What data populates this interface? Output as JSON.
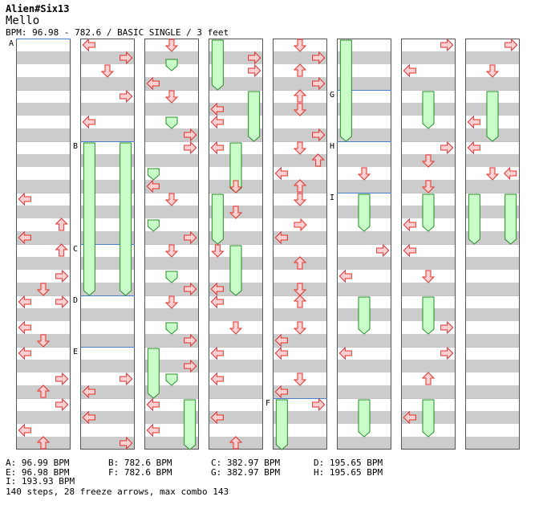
{
  "header": {
    "artist": "Alien#Six13",
    "title": "Mello",
    "meta": "BPM: 96.98 - 782.6 / BASIC SINGLE / 3 feet"
  },
  "colors": {
    "stripe": "#cccccc",
    "bpm_line": "#4a7fd0",
    "arrow_fill": "#ffd0d0",
    "arrow_stroke": "#e03030",
    "freeze_fill": "#c8ffc8",
    "freeze_stroke": "#2a8a2a"
  },
  "chart": {
    "lanes_per_column": 3,
    "measures_per_column": 8,
    "rows_per_measure": 16,
    "bpm_markers": [
      {
        "label": "A",
        "col": 0,
        "measure": 0,
        "row": 0
      },
      {
        "label": "B",
        "col": 1,
        "measure": 2,
        "row": 0
      },
      {
        "label": "C",
        "col": 1,
        "measure": 4,
        "row": 0
      },
      {
        "label": "D",
        "col": 1,
        "measure": 5,
        "row": 0
      },
      {
        "label": "E",
        "col": 1,
        "measure": 6,
        "row": 0
      },
      {
        "label": "F",
        "col": 4,
        "measure": 7,
        "row": 0
      },
      {
        "label": "G",
        "col": 5,
        "measure": 1,
        "row": 0
      },
      {
        "label": "H",
        "col": 5,
        "measure": 2,
        "row": 0
      },
      {
        "label": "I",
        "col": 5,
        "measure": 3,
        "row": 0
      }
    ],
    "freezes": [
      {
        "col": 1,
        "lane": 0,
        "from": [
          2,
          0
        ],
        "to": [
          5,
          0
        ]
      },
      {
        "col": 1,
        "lane": 2,
        "from": [
          2,
          0
        ],
        "to": [
          5,
          0
        ]
      },
      {
        "col": 2,
        "lane": 1,
        "from": [
          0,
          6
        ],
        "to": [
          0,
          10
        ]
      },
      {
        "col": 2,
        "lane": 1,
        "from": [
          1,
          8
        ],
        "to": [
          1,
          12
        ]
      },
      {
        "col": 2,
        "lane": 0,
        "from": [
          2,
          8
        ],
        "to": [
          2,
          12
        ]
      },
      {
        "col": 2,
        "lane": 0,
        "from": [
          3,
          8
        ],
        "to": [
          3,
          12
        ]
      },
      {
        "col": 2,
        "lane": 1,
        "from": [
          4,
          8
        ],
        "to": [
          4,
          12
        ]
      },
      {
        "col": 2,
        "lane": 1,
        "from": [
          5,
          8
        ],
        "to": [
          5,
          12
        ]
      },
      {
        "col": 2,
        "lane": 1,
        "from": [
          6,
          8
        ],
        "to": [
          6,
          12
        ]
      },
      {
        "col": 2,
        "lane": 0,
        "from": [
          6,
          0
        ],
        "to": [
          6,
          16
        ]
      },
      {
        "col": 2,
        "lane": 2,
        "from": [
          7,
          0
        ],
        "to": [
          7,
          16
        ]
      },
      {
        "col": 3,
        "lane": 0,
        "from": [
          0,
          0
        ],
        "to": [
          0,
          16
        ]
      },
      {
        "col": 3,
        "lane": 2,
        "from": [
          1,
          0
        ],
        "to": [
          1,
          16
        ]
      },
      {
        "col": 3,
        "lane": 1,
        "from": [
          2,
          0
        ],
        "to": [
          2,
          16
        ]
      },
      {
        "col": 3,
        "lane": 0,
        "from": [
          3,
          0
        ],
        "to": [
          3,
          16
        ]
      },
      {
        "col": 3,
        "lane": 1,
        "from": [
          4,
          0
        ],
        "to": [
          4,
          16
        ]
      },
      {
        "col": 4,
        "lane": 0,
        "from": [
          7,
          0
        ],
        "to": [
          7,
          20
        ]
      },
      {
        "col": 5,
        "lane": 0,
        "from": [
          0,
          0
        ],
        "to": [
          2,
          0
        ]
      },
      {
        "col": 5,
        "lane": 1,
        "from": [
          3,
          0
        ],
        "to": [
          3,
          12
        ]
      },
      {
        "col": 5,
        "lane": 1,
        "from": [
          5,
          0
        ],
        "to": [
          5,
          12
        ]
      },
      {
        "col": 5,
        "lane": 1,
        "from": [
          7,
          0
        ],
        "to": [
          7,
          12
        ]
      },
      {
        "col": 6,
        "lane": 1,
        "from": [
          1,
          0
        ],
        "to": [
          1,
          12
        ]
      },
      {
        "col": 6,
        "lane": 1,
        "from": [
          3,
          0
        ],
        "to": [
          3,
          12
        ]
      },
      {
        "col": 6,
        "lane": 1,
        "from": [
          5,
          0
        ],
        "to": [
          5,
          12
        ]
      },
      {
        "col": 6,
        "lane": 1,
        "from": [
          7,
          0
        ],
        "to": [
          7,
          12
        ]
      },
      {
        "col": 7,
        "lane": 1,
        "from": [
          1,
          0
        ],
        "to": [
          1,
          16
        ]
      },
      {
        "col": 7,
        "lane": 0,
        "from": [
          3,
          0
        ],
        "to": [
          3,
          16
        ]
      },
      {
        "col": 7,
        "lane": 2,
        "from": [
          3,
          0
        ],
        "to": [
          3,
          16
        ]
      }
    ],
    "arrows": [
      {
        "col": 0,
        "measure": 3,
        "row": 0,
        "lane": 0,
        "dir": "left"
      },
      {
        "col": 0,
        "measure": 3,
        "row": 8,
        "lane": 2,
        "dir": "up"
      },
      {
        "col": 0,
        "measure": 3,
        "row": 12,
        "lane": 0,
        "dir": "left"
      },
      {
        "col": 0,
        "measure": 4,
        "row": 0,
        "lane": 2,
        "dir": "up"
      },
      {
        "col": 0,
        "measure": 4,
        "row": 8,
        "lane": 2,
        "dir": "right"
      },
      {
        "col": 0,
        "measure": 4,
        "row": 12,
        "lane": 1,
        "dir": "down"
      },
      {
        "col": 0,
        "measure": 5,
        "row": 0,
        "lane": 0,
        "dir": "left"
      },
      {
        "col": 0,
        "measure": 5,
        "row": 0,
        "lane": 2,
        "dir": "right"
      },
      {
        "col": 0,
        "measure": 5,
        "row": 8,
        "lane": 0,
        "dir": "left"
      },
      {
        "col": 0,
        "measure": 5,
        "row": 12,
        "lane": 1,
        "dir": "down"
      },
      {
        "col": 0,
        "measure": 6,
        "row": 0,
        "lane": 0,
        "dir": "left"
      },
      {
        "col": 0,
        "measure": 6,
        "row": 8,
        "lane": 2,
        "dir": "right"
      },
      {
        "col": 0,
        "measure": 6,
        "row": 12,
        "lane": 1,
        "dir": "up"
      },
      {
        "col": 0,
        "measure": 7,
        "row": 8,
        "lane": 0,
        "dir": "left"
      },
      {
        "col": 0,
        "measure": 7,
        "row": 12,
        "lane": 1,
        "dir": "up"
      },
      {
        "col": 0,
        "measure": 7,
        "row": 0,
        "lane": 2,
        "dir": "right"
      },
      {
        "col": 1,
        "measure": 0,
        "row": 0,
        "lane": 0,
        "dir": "left"
      },
      {
        "col": 1,
        "measure": 0,
        "row": 8,
        "lane": 1,
        "dir": "down"
      },
      {
        "col": 1,
        "measure": 0,
        "row": 4,
        "lane": 2,
        "dir": "right"
      },
      {
        "col": 1,
        "measure": 1,
        "row": 0,
        "lane": 2,
        "dir": "right"
      },
      {
        "col": 1,
        "measure": 1,
        "row": 8,
        "lane": 0,
        "dir": "left"
      },
      {
        "col": 1,
        "measure": 6,
        "row": 12,
        "lane": 0,
        "dir": "left"
      },
      {
        "col": 1,
        "measure": 6,
        "row": 8,
        "lane": 2,
        "dir": "right"
      },
      {
        "col": 1,
        "measure": 7,
        "row": 12,
        "lane": 2,
        "dir": "right"
      },
      {
        "col": 1,
        "measure": 7,
        "row": 4,
        "lane": 0,
        "dir": "left"
      },
      {
        "col": 2,
        "measure": 0,
        "row": 0,
        "lane": 1,
        "dir": "down"
      },
      {
        "col": 2,
        "measure": 0,
        "row": 12,
        "lane": 0,
        "dir": "left"
      },
      {
        "col": 2,
        "measure": 1,
        "row": 0,
        "lane": 1,
        "dir": "down"
      },
      {
        "col": 2,
        "measure": 1,
        "row": 12,
        "lane": 2,
        "dir": "right"
      },
      {
        "col": 2,
        "measure": 2,
        "row": 0,
        "lane": 2,
        "dir": "right"
      },
      {
        "col": 2,
        "measure": 2,
        "row": 12,
        "lane": 0,
        "dir": "left"
      },
      {
        "col": 2,
        "measure": 3,
        "row": 0,
        "lane": 1,
        "dir": "down"
      },
      {
        "col": 2,
        "measure": 3,
        "row": 12,
        "lane": 2,
        "dir": "right"
      },
      {
        "col": 2,
        "measure": 4,
        "row": 0,
        "lane": 1,
        "dir": "down"
      },
      {
        "col": 2,
        "measure": 4,
        "row": 12,
        "lane": 2,
        "dir": "right"
      },
      {
        "col": 2,
        "measure": 5,
        "row": 0,
        "lane": 1,
        "dir": "down"
      },
      {
        "col": 2,
        "measure": 5,
        "row": 12,
        "lane": 2,
        "dir": "right"
      },
      {
        "col": 2,
        "measure": 6,
        "row": 4,
        "lane": 2,
        "dir": "right"
      },
      {
        "col": 2,
        "measure": 7,
        "row": 0,
        "lane": 0,
        "dir": "left"
      },
      {
        "col": 2,
        "measure": 7,
        "row": 8,
        "lane": 0,
        "dir": "left"
      },
      {
        "col": 3,
        "measure": 0,
        "row": 4,
        "lane": 2,
        "dir": "right"
      },
      {
        "col": 3,
        "measure": 0,
        "row": 8,
        "lane": 2,
        "dir": "right"
      },
      {
        "col": 3,
        "measure": 1,
        "row": 4,
        "lane": 0,
        "dir": "left"
      },
      {
        "col": 3,
        "measure": 1,
        "row": 8,
        "lane": 0,
        "dir": "left"
      },
      {
        "col": 3,
        "measure": 2,
        "row": 0,
        "lane": 0,
        "dir": "left"
      },
      {
        "col": 3,
        "measure": 2,
        "row": 12,
        "lane": 1,
        "dir": "down"
      },
      {
        "col": 3,
        "measure": 3,
        "row": 4,
        "lane": 1,
        "dir": "down"
      },
      {
        "col": 3,
        "measure": 4,
        "row": 0,
        "lane": 0,
        "dir": "down"
      },
      {
        "col": 3,
        "measure": 4,
        "row": 12,
        "lane": 0,
        "dir": "left"
      },
      {
        "col": 3,
        "measure": 5,
        "row": 0,
        "lane": 0,
        "dir": "left"
      },
      {
        "col": 3,
        "measure": 5,
        "row": 8,
        "lane": 1,
        "dir": "down"
      },
      {
        "col": 3,
        "measure": 6,
        "row": 0,
        "lane": 0,
        "dir": "left"
      },
      {
        "col": 3,
        "measure": 6,
        "row": 8,
        "lane": 0,
        "dir": "left"
      },
      {
        "col": 3,
        "measure": 7,
        "row": 4,
        "lane": 0,
        "dir": "left"
      },
      {
        "col": 3,
        "measure": 7,
        "row": 12,
        "lane": 1,
        "dir": "up"
      },
      {
        "col": 4,
        "measure": 0,
        "row": 0,
        "lane": 1,
        "dir": "down"
      },
      {
        "col": 4,
        "measure": 0,
        "row": 4,
        "lane": 2,
        "dir": "right"
      },
      {
        "col": 4,
        "measure": 0,
        "row": 8,
        "lane": 1,
        "dir": "up"
      },
      {
        "col": 4,
        "measure": 0,
        "row": 12,
        "lane": 2,
        "dir": "right"
      },
      {
        "col": 4,
        "measure": 1,
        "row": 0,
        "lane": 1,
        "dir": "up"
      },
      {
        "col": 4,
        "measure": 1,
        "row": 4,
        "lane": 1,
        "dir": "down"
      },
      {
        "col": 4,
        "measure": 1,
        "row": 12,
        "lane": 2,
        "dir": "right"
      },
      {
        "col": 4,
        "measure": 2,
        "row": 0,
        "lane": 1,
        "dir": "down"
      },
      {
        "col": 4,
        "measure": 2,
        "row": 4,
        "lane": 2,
        "dir": "up"
      },
      {
        "col": 4,
        "measure": 2,
        "row": 8,
        "lane": 0,
        "dir": "left"
      },
      {
        "col": 4,
        "measure": 2,
        "row": 12,
        "lane": 1,
        "dir": "up"
      },
      {
        "col": 4,
        "measure": 3,
        "row": 0,
        "lane": 1,
        "dir": "down"
      },
      {
        "col": 4,
        "measure": 3,
        "row": 8,
        "lane": 1,
        "dir": "right"
      },
      {
        "col": 4,
        "measure": 3,
        "row": 12,
        "lane": 0,
        "dir": "left"
      },
      {
        "col": 4,
        "measure": 4,
        "row": 4,
        "lane": 1,
        "dir": "up"
      },
      {
        "col": 4,
        "measure": 4,
        "row": 12,
        "lane": 1,
        "dir": "down"
      },
      {
        "col": 4,
        "measure": 5,
        "row": 0,
        "lane": 1,
        "dir": "up"
      },
      {
        "col": 4,
        "measure": 5,
        "row": 8,
        "lane": 1,
        "dir": "down"
      },
      {
        "col": 4,
        "measure": 5,
        "row": 12,
        "lane": 0,
        "dir": "left"
      },
      {
        "col": 4,
        "measure": 6,
        "row": 0,
        "lane": 0,
        "dir": "left"
      },
      {
        "col": 4,
        "measure": 6,
        "row": 8,
        "lane": 1,
        "dir": "down"
      },
      {
        "col": 4,
        "measure": 6,
        "row": 12,
        "lane": 0,
        "dir": "left"
      },
      {
        "col": 4,
        "measure": 7,
        "row": 0,
        "lane": 2,
        "dir": "right"
      },
      {
        "col": 5,
        "measure": 4,
        "row": 0,
        "lane": 2,
        "dir": "right"
      },
      {
        "col": 5,
        "measure": 4,
        "row": 8,
        "lane": 0,
        "dir": "left"
      },
      {
        "col": 5,
        "measure": 6,
        "row": 0,
        "lane": 0,
        "dir": "left"
      },
      {
        "col": 5,
        "measure": 2,
        "row": 8,
        "lane": 1,
        "dir": "down"
      },
      {
        "col": 6,
        "measure": 0,
        "row": 0,
        "lane": 2,
        "dir": "right"
      },
      {
        "col": 6,
        "measure": 0,
        "row": 8,
        "lane": 0,
        "dir": "left"
      },
      {
        "col": 6,
        "measure": 2,
        "row": 0,
        "lane": 2,
        "dir": "right"
      },
      {
        "col": 6,
        "measure": 2,
        "row": 4,
        "lane": 1,
        "dir": "down"
      },
      {
        "col": 6,
        "measure": 2,
        "row": 12,
        "lane": 1,
        "dir": "down"
      },
      {
        "col": 6,
        "measure": 3,
        "row": 8,
        "lane": 0,
        "dir": "left"
      },
      {
        "col": 6,
        "measure": 4,
        "row": 0,
        "lane": 0,
        "dir": "left"
      },
      {
        "col": 6,
        "measure": 4,
        "row": 8,
        "lane": 1,
        "dir": "down"
      },
      {
        "col": 6,
        "measure": 5,
        "row": 8,
        "lane": 2,
        "dir": "right"
      },
      {
        "col": 6,
        "measure": 6,
        "row": 8,
        "lane": 1,
        "dir": "up"
      },
      {
        "col": 6,
        "measure": 7,
        "row": 4,
        "lane": 0,
        "dir": "left"
      },
      {
        "col": 6,
        "measure": 6,
        "row": 0,
        "lane": 2,
        "dir": "right"
      },
      {
        "col": 7,
        "measure": 0,
        "row": 0,
        "lane": 2,
        "dir": "right"
      },
      {
        "col": 7,
        "measure": 0,
        "row": 8,
        "lane": 1,
        "dir": "down"
      },
      {
        "col": 7,
        "measure": 1,
        "row": 8,
        "lane": 0,
        "dir": "left"
      },
      {
        "col": 7,
        "measure": 2,
        "row": 0,
        "lane": 0,
        "dir": "left"
      },
      {
        "col": 7,
        "measure": 2,
        "row": 8,
        "lane": 1,
        "dir": "down"
      },
      {
        "col": 7,
        "measure": 2,
        "row": 8,
        "lane": 2,
        "dir": "left"
      }
    ]
  },
  "legend": [
    [
      "A: 96.99 BPM",
      "B: 782.6 BPM",
      "C: 382.97 BPM",
      "D: 195.65 BPM"
    ],
    [
      "E: 96.98 BPM",
      "F: 782.6 BPM",
      "G: 382.97 BPM",
      "H: 195.65 BPM"
    ],
    [
      "I: 193.93 BPM"
    ]
  ],
  "summary": "140 steps, 28 freeze arrows, max combo 143"
}
